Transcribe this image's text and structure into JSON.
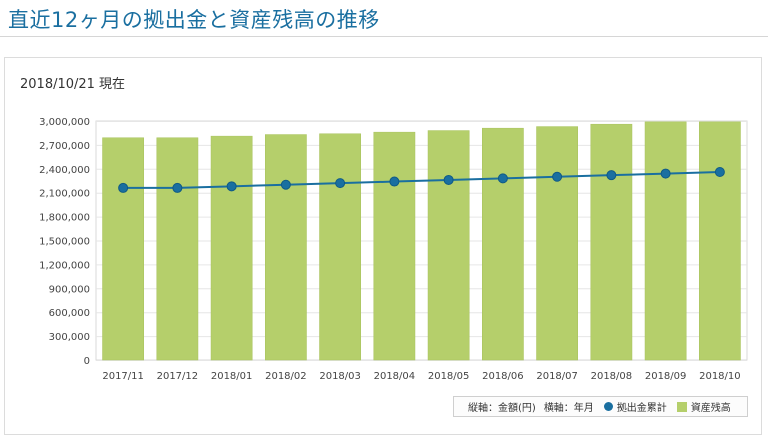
{
  "page": {
    "title": "直近12ヶ月の拠出金と資産残高の推移",
    "as_of": "2018/10/21 現在"
  },
  "legend": {
    "vertical_axis": "縦軸：金額(円)",
    "horizontal_axis": "横軸：年月",
    "line_series": "拠出金累計",
    "bar_series": "資産残高"
  },
  "colors": {
    "bar": "#b5cf6b",
    "bar_stroke": "#a8c25c",
    "line": "#1a6fa0",
    "title": "#1a6fa0",
    "grid": "#e6e6e6"
  },
  "chart_data": {
    "type": "bar",
    "categories": [
      "2017/11",
      "2017/12",
      "2018/01",
      "2018/02",
      "2018/03",
      "2018/04",
      "2018/05",
      "2018/06",
      "2018/07",
      "2018/08",
      "2018/09",
      "2018/10"
    ],
    "y_ticks": [
      "0",
      "300,000",
      "600,000",
      "900,000",
      "1,200,000",
      "1,500,000",
      "1,800,000",
      "2,100,000",
      "2,400,000",
      "2,700,000",
      "3,000,000"
    ],
    "ylim": [
      0,
      3000000
    ],
    "grid": true,
    "legend_position": "bottom-right",
    "series": [
      {
        "name": "資産残高",
        "type": "bar",
        "values": [
          2790000,
          2790000,
          2810000,
          2830000,
          2840000,
          2860000,
          2880000,
          2910000,
          2930000,
          2960000,
          2990000,
          2990000
        ]
      },
      {
        "name": "拠出金累計",
        "type": "line",
        "values": [
          2160000,
          2160000,
          2180000,
          2200000,
          2220000,
          2240000,
          2260000,
          2280000,
          2300000,
          2320000,
          2340000,
          2360000
        ]
      }
    ]
  }
}
